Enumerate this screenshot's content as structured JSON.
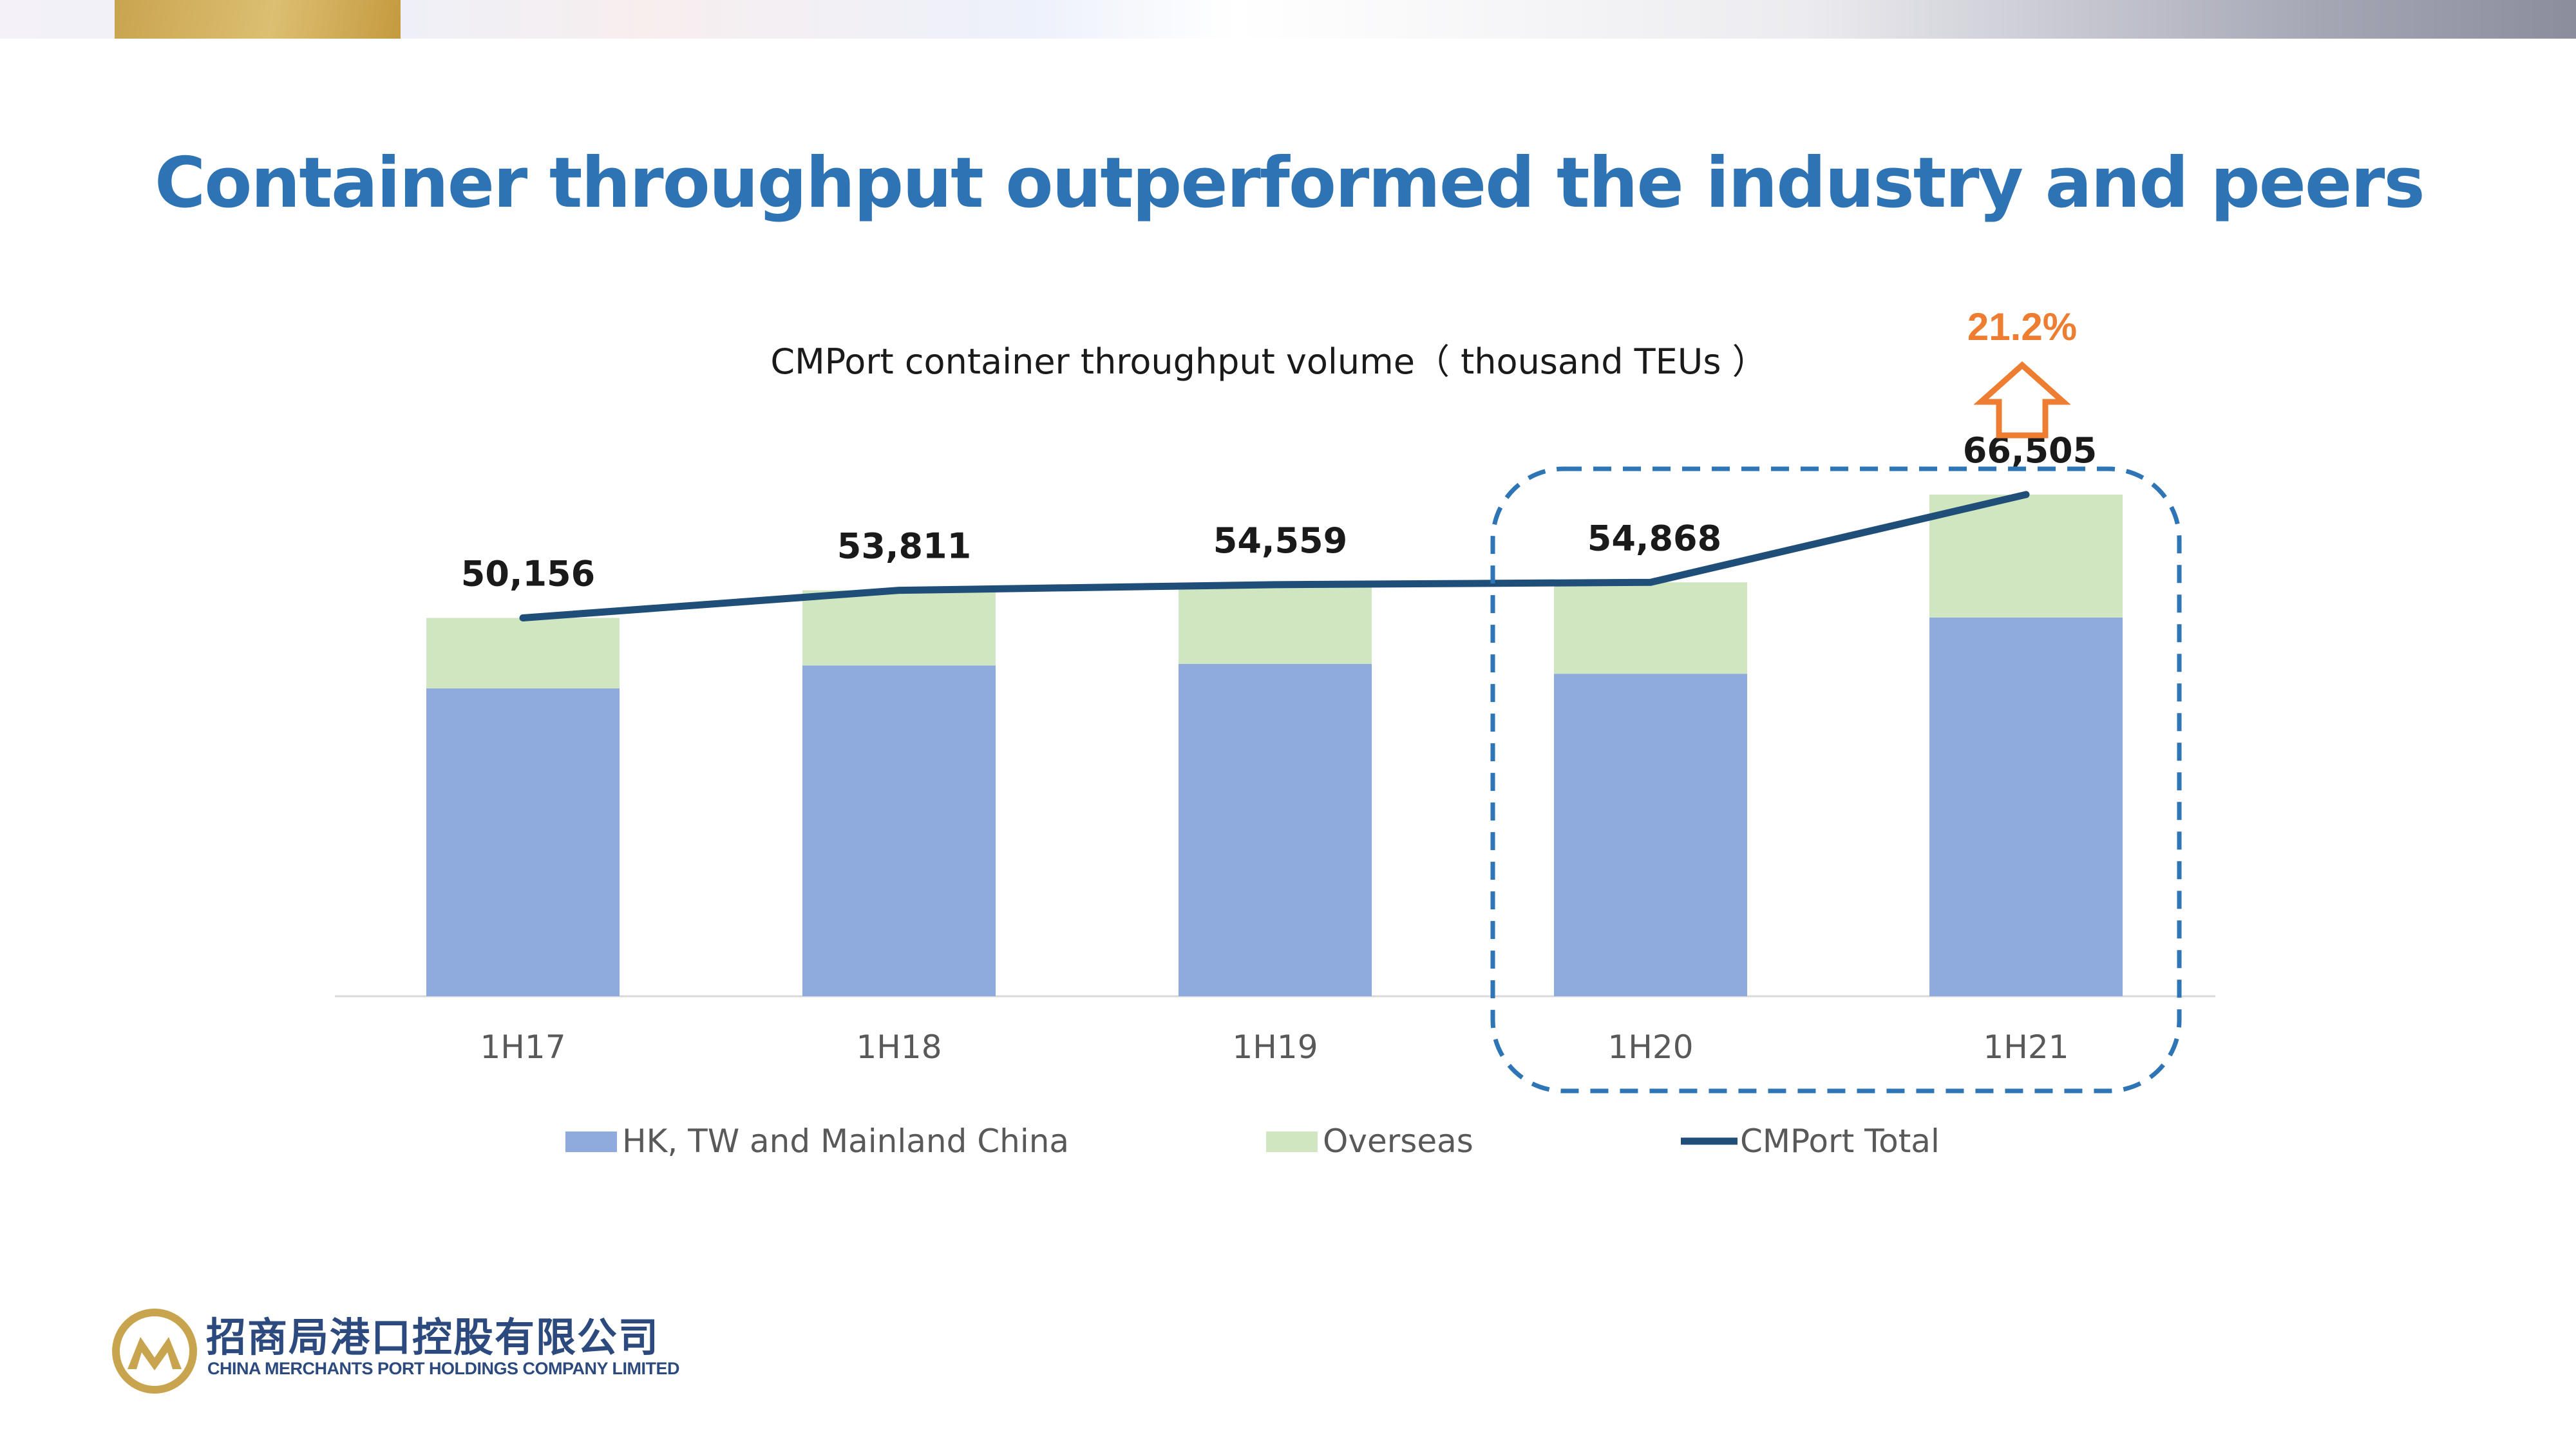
{
  "slide": {
    "title": "Container throughput outperformed the industry and peers"
  },
  "logo": {
    "chinese_name": "招商局港口控股有限公司",
    "english_name": "CHINA MERCHANTS PORT HOLDINGS COMPANY LIMITED"
  },
  "chart_data": {
    "type": "bar",
    "stacked": true,
    "title": "CMPort container throughput volume（ thousand TEUs ）",
    "categories": [
      "1H17",
      "1H18",
      "1H19",
      "1H20",
      "1H21"
    ],
    "series": [
      {
        "name": "HK, TW and Mainland China",
        "kind": "bar",
        "color": "#8faadc",
        "values": [
          40820,
          43850,
          44050,
          42750,
          50200
        ]
      },
      {
        "name": "Overseas",
        "kind": "bar",
        "color": "#d0e6c1",
        "values": [
          9336,
          9961,
          10509,
          12118,
          16305
        ]
      },
      {
        "name": "CMPort Total",
        "kind": "line",
        "color": "#1f4e79",
        "values": [
          50156,
          53811,
          54559,
          54868,
          66505
        ]
      }
    ],
    "total_labels": [
      "50,156",
      "53,811",
      "54,559",
      "54,868",
      "66,505"
    ],
    "ylim": [
      0,
      70000
    ],
    "grid": false,
    "legend": "bottom",
    "annotation": {
      "text": "21.2%",
      "color": "#ed7d31",
      "icon": "up-arrow-icon",
      "highlight": "dashed box around 1H20 and 1H21"
    }
  }
}
